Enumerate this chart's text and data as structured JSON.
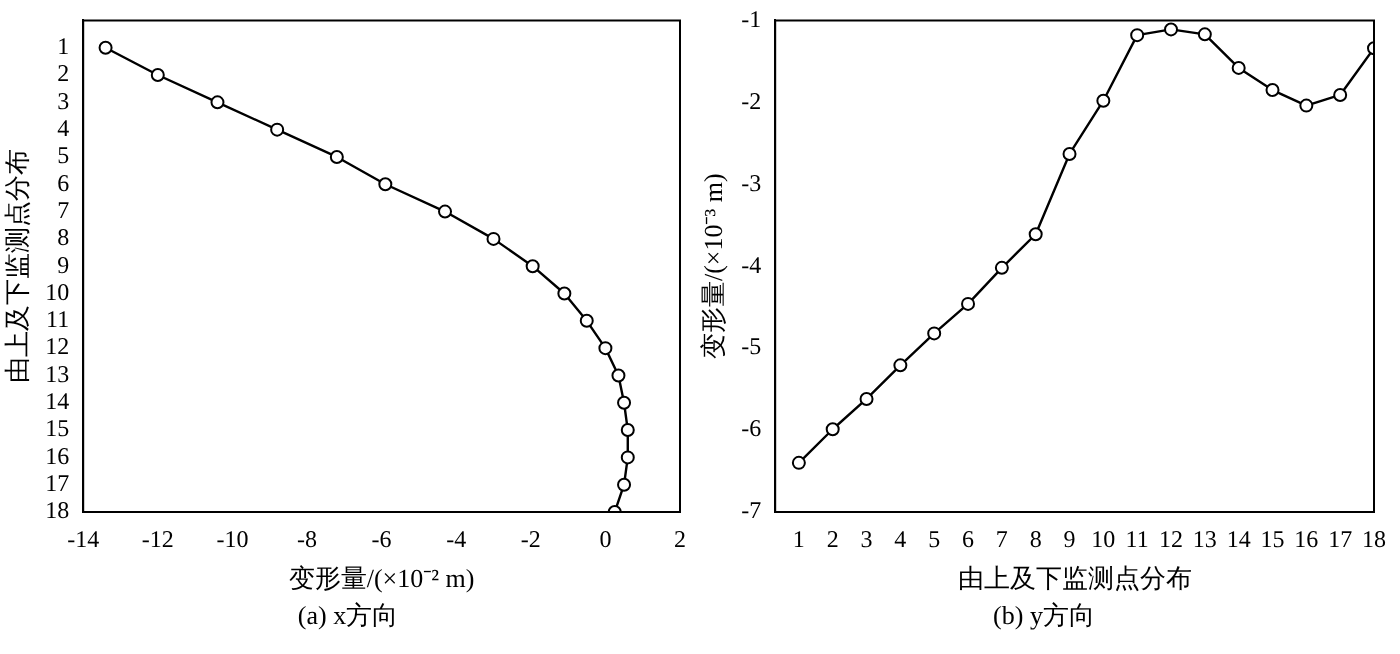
{
  "chart_data": [
    {
      "type": "line",
      "xlabel": "变形量/(×10⁻² m)",
      "ylabel": "由上及下监测点分布",
      "annotations": [
        "(a) x方向"
      ],
      "x": [
        -13.4,
        -12,
        -10.4,
        -8.8,
        -7.2,
        -5.9,
        -4.3,
        -3.0,
        -1.95,
        -1.1,
        -0.5,
        0,
        0.35,
        0.5,
        0.6,
        0.6,
        0.5,
        0.25
      ],
      "series": [
        {
          "color": "#000000",
          "values": [
            1,
            2,
            3,
            4,
            5,
            6,
            7,
            8,
            9,
            10,
            11,
            12,
            13,
            14,
            15,
            16,
            17,
            18
          ]
        }
      ],
      "xlim": [
        -14,
        2
      ],
      "xticks": [
        -14,
        -12,
        -10,
        -8,
        -6,
        -4,
        -2,
        0,
        2
      ],
      "ylim": [
        18,
        0
      ],
      "yticks": [
        1,
        2,
        3,
        4,
        5,
        6,
        7,
        8,
        9,
        10,
        11,
        12,
        13,
        14,
        15,
        16,
        17,
        18
      ],
      "marker": "circle",
      "line_style": "solid"
    },
    {
      "type": "line",
      "xlabel": "由上及下监测点分布",
      "ylabel": "变形量/(×10⁻³ m)",
      "annotations": [
        "(b) y方向"
      ],
      "x": [
        1,
        2,
        3,
        4,
        5,
        6,
        7,
        8,
        9,
        10,
        11,
        12,
        13,
        14,
        15,
        16,
        17,
        18
      ],
      "series": [
        {
          "color": "#000000",
          "values": [
            -6.4,
            -5.99,
            -5.62,
            -5.21,
            -4.82,
            -4.46,
            -4.02,
            -3.61,
            -2.63,
            -1.98,
            -1.18,
            -1.11,
            -1.17,
            -1.58,
            -1.85,
            -2.04,
            -1.91,
            -1.34
          ]
        }
      ],
      "xlim": [
        0.3,
        18
      ],
      "xticks": [
        1,
        2,
        3,
        4,
        5,
        6,
        7,
        8,
        9,
        10,
        11,
        12,
        13,
        14,
        15,
        16,
        17,
        18
      ],
      "ylim": [
        -7,
        -1
      ],
      "yticks": [
        -7,
        -6,
        -5,
        -4,
        -3,
        -2,
        -1
      ],
      "marker": "circle",
      "line_style": "solid"
    }
  ]
}
